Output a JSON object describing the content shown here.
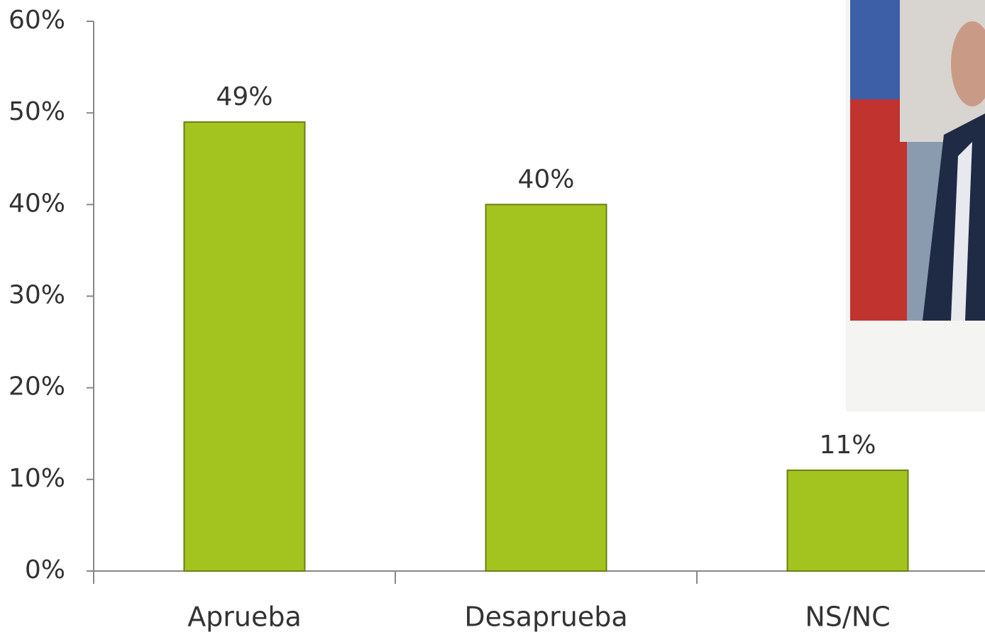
{
  "chart_data": {
    "type": "bar",
    "categories": [
      "Aprueba",
      "Desaprueba",
      "NS/NC"
    ],
    "values": [
      49,
      40,
      11
    ],
    "value_labels": [
      "49%",
      "40%",
      "11%"
    ],
    "color": "#a3c41f",
    "ylim": [
      0,
      60
    ],
    "yticks": [
      {
        "value": 0,
        "label": "0%"
      },
      {
        "value": 10,
        "label": "10%"
      },
      {
        "value": 20,
        "label": "20%"
      },
      {
        "value": 30,
        "label": "30%"
      },
      {
        "value": 40,
        "label": "40%"
      },
      {
        "value": 50,
        "label": "50%"
      },
      {
        "value": 60,
        "label": "60%"
      }
    ],
    "grid": false
  }
}
